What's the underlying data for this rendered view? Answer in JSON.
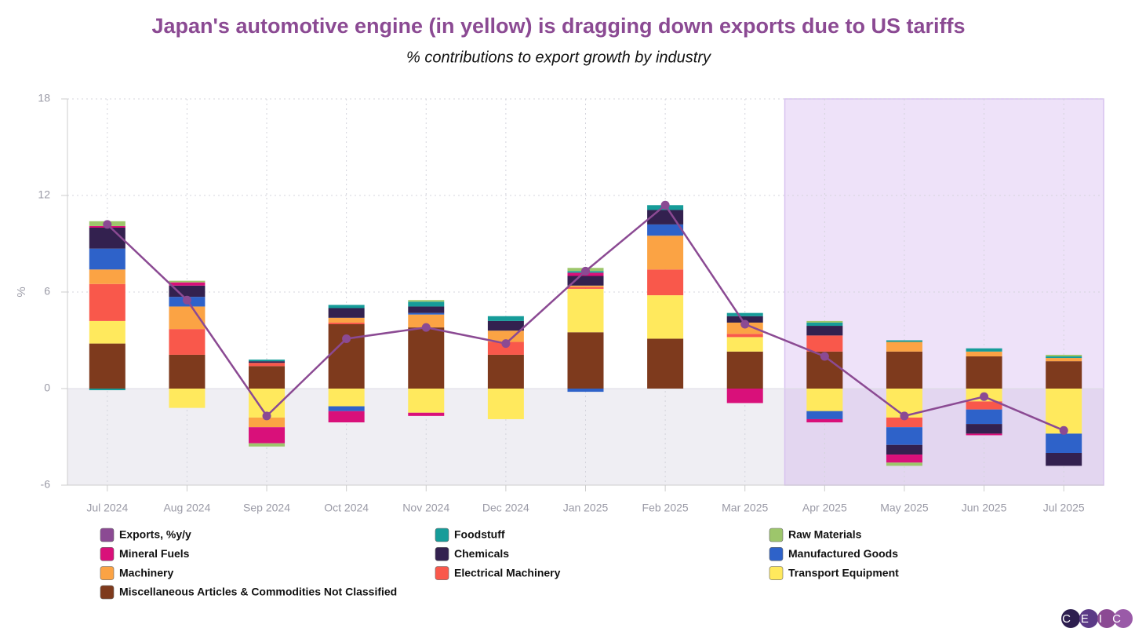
{
  "chart_data": {
    "type": "bar",
    "stacked": true,
    "title": "Japan's automotive engine (in yellow) is dragging down exports due to US tariffs",
    "subtitle": "% contributions to export growth by industry",
    "y_label": "%",
    "logo": "CEIC",
    "categories": [
      "Jul 2024",
      "Aug 2024",
      "Sep 2024",
      "Oct 2024",
      "Nov 2024",
      "Dec 2024",
      "Jan 2025",
      "Feb 2025",
      "Mar 2025",
      "Apr 2025",
      "May 2025",
      "Jun 2025",
      "Jul 2025"
    ],
    "ylim": [
      -6,
      18
    ],
    "yticks": [
      -6,
      0,
      6,
      12,
      18
    ],
    "grid": true,
    "series": [
      {
        "name": "Exports, %y/y",
        "type": "line",
        "color": "#8b4a93",
        "values": [
          10.2,
          5.5,
          -1.7,
          3.1,
          3.8,
          2.8,
          7.3,
          11.4,
          4.0,
          2.0,
          -1.7,
          -0.5,
          -2.6
        ]
      },
      {
        "name": "Foodstuff",
        "color": "#169c99",
        "values": [
          -0.1,
          0,
          0.1,
          0.2,
          0.3,
          0.3,
          0.1,
          0.3,
          0.2,
          0.2,
          0.1,
          0.2,
          0.1
        ]
      },
      {
        "name": "Raw Materials",
        "color": "#9dc66b",
        "values": [
          0.3,
          0.1,
          -0.2,
          0,
          0.1,
          0,
          0.2,
          0,
          0,
          0.1,
          -0.2,
          0,
          0.1
        ]
      },
      {
        "name": "Mineral Fuels",
        "color": "#d9107a",
        "values": [
          0.1,
          0.2,
          -1.0,
          -0.7,
          -0.2,
          0,
          0.2,
          0,
          -0.9,
          -0.2,
          -0.5,
          -0.1,
          0
        ]
      },
      {
        "name": "Chemicals",
        "color": "#33214f",
        "values": [
          1.3,
          0.7,
          0.1,
          0.6,
          0.4,
          0.6,
          0.6,
          0.9,
          0.4,
          0.6,
          -0.6,
          -0.6,
          -0.8
        ]
      },
      {
        "name": "Manufactured Goods",
        "color": "#2e62c9",
        "values": [
          1.3,
          0.6,
          0,
          -0.3,
          0.1,
          0,
          -0.2,
          0.7,
          0,
          -0.5,
          -1.1,
          -0.9,
          -1.2
        ]
      },
      {
        "name": "Machinery",
        "color": "#fba344",
        "values": [
          0.9,
          1.4,
          -0.6,
          0.3,
          0.8,
          0.7,
          0.1,
          2.1,
          0.7,
          0,
          0.6,
          0.3,
          0.2
        ]
      },
      {
        "name": "Electrical Machinery",
        "color": "#f9584b",
        "values": [
          2.3,
          1.6,
          0.2,
          0.1,
          0,
          0.8,
          0.1,
          1.6,
          0.2,
          1.0,
          -0.6,
          -0.5,
          0
        ]
      },
      {
        "name": "Transport Equipment",
        "color": "#ffe95d",
        "values": [
          1.4,
          -1.2,
          -1.8,
          -1.1,
          -1.5,
          -1.9,
          2.7,
          2.7,
          0.9,
          -1.4,
          -1.8,
          -0.8,
          -2.8
        ]
      },
      {
        "name": "Miscellaneous Articles & Commodities Not Classified",
        "color": "#7e3a1d",
        "values": [
          2.8,
          2.1,
          1.4,
          4.0,
          3.8,
          2.1,
          3.5,
          3.1,
          2.3,
          2.3,
          2.3,
          2.0,
          1.7
        ]
      }
    ]
  }
}
